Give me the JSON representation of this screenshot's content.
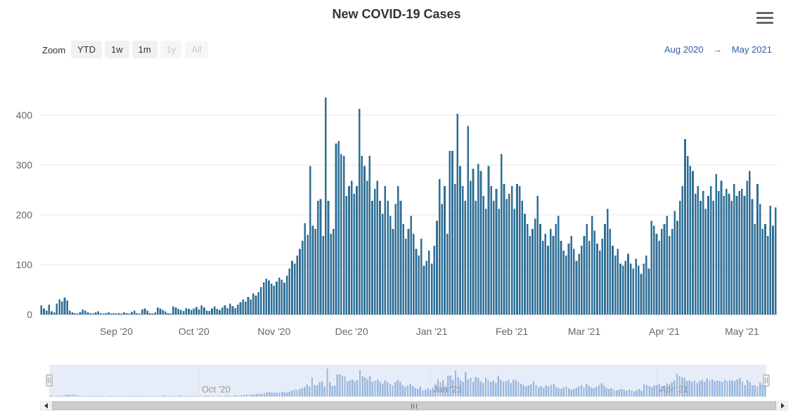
{
  "header": {
    "title": "New COVID-19 Cases"
  },
  "toolbar": {
    "zoom_label": "Zoom",
    "buttons": [
      {
        "label": "YTD",
        "enabled": true
      },
      {
        "label": "1w",
        "enabled": true
      },
      {
        "label": "1m",
        "enabled": true
      },
      {
        "label": "1y",
        "enabled": false
      },
      {
        "label": "All",
        "enabled": false
      }
    ],
    "range_from": "Aug 2020",
    "range_arrow": "→",
    "range_to": "May 2021"
  },
  "chart_data": {
    "type": "bar",
    "title": "New COVID-19 Cases",
    "xlabel": "",
    "ylabel": "",
    "x_range": [
      "Aug 2020",
      "May 2021"
    ],
    "ylim": [
      0,
      440
    ],
    "yticks": [
      0,
      100,
      200,
      300,
      400
    ],
    "grid": true,
    "legend": "none",
    "bar_color": "#2f6f96",
    "x_ticks": [
      {
        "label": "Sep '20",
        "day": 29
      },
      {
        "label": "Oct '20",
        "day": 59
      },
      {
        "label": "Nov '20",
        "day": 90
      },
      {
        "label": "Dec '20",
        "day": 120
      },
      {
        "label": "Jan '21",
        "day": 151
      },
      {
        "label": "Feb '21",
        "day": 182
      },
      {
        "label": "Mar '21",
        "day": 210
      },
      {
        "label": "Apr '21",
        "day": 241
      },
      {
        "label": "May '21",
        "day": 271
      }
    ],
    "values": [
      18,
      12,
      8,
      20,
      6,
      4,
      22,
      30,
      26,
      34,
      28,
      8,
      4,
      3,
      2,
      5,
      10,
      8,
      4,
      3,
      2,
      4,
      6,
      3,
      2,
      3,
      4,
      2,
      3,
      2,
      3,
      2,
      4,
      3,
      2,
      5,
      8,
      3,
      2,
      10,
      12,
      8,
      3,
      2,
      4,
      14,
      12,
      9,
      6,
      3,
      2,
      16,
      14,
      11,
      9,
      7,
      13,
      11,
      9,
      12,
      15,
      10,
      18,
      14,
      8,
      7,
      12,
      16,
      11,
      9,
      14,
      18,
      13,
      22,
      17,
      13,
      20,
      25,
      30,
      26,
      35,
      30,
      42,
      38,
      45,
      55,
      65,
      72,
      68,
      62,
      58,
      66,
      74,
      70,
      64,
      78,
      92,
      108,
      102,
      118,
      132,
      148,
      183,
      160,
      298,
      178,
      172,
      228,
      232,
      158,
      435,
      228,
      162,
      172,
      343,
      348,
      322,
      318,
      238,
      258,
      268,
      242,
      258,
      413,
      318,
      298,
      268,
      318,
      228,
      252,
      268,
      228,
      202,
      258,
      228,
      198,
      172,
      222,
      258,
      228,
      182,
      152,
      172,
      198,
      162,
      132,
      118,
      152,
      98,
      108,
      128,
      102,
      138,
      188,
      272,
      222,
      258,
      162,
      328,
      328,
      262,
      403,
      298,
      258,
      228,
      378,
      268,
      292,
      228,
      302,
      288,
      238,
      212,
      298,
      258,
      228,
      252,
      212,
      322,
      262,
      232,
      242,
      258,
      212,
      262,
      258,
      228,
      202,
      182,
      158,
      172,
      192,
      238,
      182,
      148,
      162,
      138,
      172,
      158,
      182,
      198,
      148,
      128,
      118,
      142,
      158,
      132,
      108,
      122,
      138,
      158,
      182,
      148,
      198,
      168,
      142,
      128,
      152,
      182,
      212,
      172,
      138,
      118,
      132,
      102,
      98,
      108,
      122,
      102,
      92,
      112,
      98,
      82,
      102,
      118,
      92,
      188,
      178,
      162,
      148,
      172,
      182,
      198,
      158,
      172,
      208,
      188,
      228,
      258,
      352,
      318,
      298,
      288,
      242,
      258,
      228,
      248,
      212,
      238,
      258,
      228,
      282,
      248,
      268,
      238,
      252,
      242,
      228,
      262,
      238,
      248,
      252,
      238,
      268,
      288,
      232,
      182,
      262,
      222,
      172,
      182,
      158,
      218,
      178,
      215
    ]
  },
  "navigator": {
    "bar_color": "#9ab8dd",
    "background": "#e7edf8",
    "labels": [
      {
        "label": "Oct '20",
        "day": 59
      },
      {
        "label": "Jan '21",
        "day": 151
      },
      {
        "label": "Apr '21",
        "day": 241
      }
    ]
  }
}
